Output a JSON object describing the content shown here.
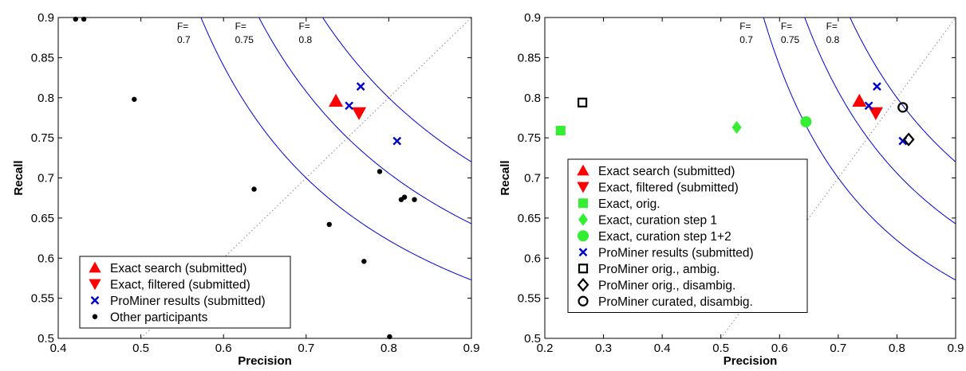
{
  "chart_data": [
    {
      "type": "scatter",
      "xlabel": "Precision",
      "ylabel": "Recall",
      "xlim": [
        0.4,
        0.9
      ],
      "ylim": [
        0.5,
        0.9
      ],
      "xticks": [
        "0.4",
        "0.5",
        "0.6",
        "0.7",
        "0.8",
        "0.9"
      ],
      "yticks": [
        "0.5",
        "0.55",
        "0.6",
        "0.65",
        "0.7",
        "0.75",
        "0.8",
        "0.85",
        "0.9"
      ],
      "grid": false,
      "diagonal": true,
      "legend_position": "bottom-left",
      "f_curves": [
        {
          "f": 0.7,
          "label_top": "F=",
          "label_bottom": "0.7"
        },
        {
          "f": 0.75,
          "label_top": "F=",
          "label_bottom": "0.75"
        },
        {
          "f": 0.8,
          "label_top": "F=",
          "label_bottom": "0.8"
        }
      ],
      "series": [
        {
          "name": "Exact search (submitted)",
          "marker": "triangle-up",
          "color": "#ff0000",
          "points": [
            [
              0.736,
              0.796
            ]
          ]
        },
        {
          "name": "Exact, filtered (submitted)",
          "marker": "triangle-down",
          "color": "#ff0000",
          "points": [
            [
              0.764,
              0.781
            ]
          ]
        },
        {
          "name": "ProMiner results (submitted)",
          "marker": "x",
          "color": "#0000cc",
          "points": [
            [
              0.752,
              0.79
            ],
            [
              0.766,
              0.814
            ],
            [
              0.81,
              0.746
            ]
          ]
        },
        {
          "name": "Other participants",
          "marker": "dot",
          "color": "#000000",
          "points": [
            [
              0.421,
              0.898
            ],
            [
              0.431,
              0.898
            ],
            [
              0.492,
              0.798
            ],
            [
              0.637,
              0.686
            ],
            [
              0.728,
              0.642
            ],
            [
              0.77,
              0.596
            ],
            [
              0.789,
              0.708
            ],
            [
              0.815,
              0.673
            ],
            [
              0.819,
              0.676
            ],
            [
              0.831,
              0.673
            ],
            [
              0.801,
              0.502
            ]
          ]
        }
      ]
    },
    {
      "type": "scatter",
      "xlabel": "Precision",
      "ylabel": "Recall",
      "xlim": [
        0.2,
        0.9
      ],
      "ylim": [
        0.5,
        0.9
      ],
      "xticks": [
        "0.2",
        "0.3",
        "0.4",
        "0.5",
        "0.6",
        "0.7",
        "0.8",
        "0.9"
      ],
      "yticks": [
        "0.5",
        "0.55",
        "0.6",
        "0.65",
        "0.7",
        "0.75",
        "0.8",
        "0.85",
        "0.9"
      ],
      "grid": false,
      "diagonal": true,
      "legend_position": "bottom-left",
      "f_curves": [
        {
          "f": 0.7,
          "label_top": "F=",
          "label_bottom": "0.7"
        },
        {
          "f": 0.75,
          "label_top": "F=",
          "label_bottom": "0.75"
        },
        {
          "f": 0.8,
          "label_top": "F=",
          "label_bottom": "0.8"
        }
      ],
      "series": [
        {
          "name": "Exact search (submitted)",
          "marker": "triangle-up",
          "color": "#ff0000",
          "points": [
            [
              0.736,
              0.796
            ]
          ]
        },
        {
          "name": "Exact, filtered (submitted)",
          "marker": "triangle-down",
          "color": "#ff0000",
          "points": [
            [
              0.764,
              0.781
            ]
          ]
        },
        {
          "name": "Exact, orig.",
          "marker": "square",
          "color": "#33ee33",
          "points": [
            [
              0.227,
              0.759
            ]
          ]
        },
        {
          "name": "Exact, curation step 1",
          "marker": "diamond",
          "color": "#33ee33",
          "points": [
            [
              0.527,
              0.763
            ]
          ]
        },
        {
          "name": "Exact, curation step 1+2",
          "marker": "circle",
          "color": "#33ee33",
          "points": [
            [
              0.645,
              0.77
            ]
          ]
        },
        {
          "name": "ProMiner results (submitted)",
          "marker": "x",
          "color": "#0000cc",
          "points": [
            [
              0.752,
              0.79
            ],
            [
              0.766,
              0.814
            ],
            [
              0.81,
              0.746
            ]
          ]
        },
        {
          "name": "ProMiner orig., ambig.",
          "marker": "square-open",
          "color": "#000000",
          "points": [
            [
              0.264,
              0.794
            ]
          ]
        },
        {
          "name": "ProMiner orig., disambig.",
          "marker": "diamond-open",
          "color": "#000000",
          "points": [
            [
              0.82,
              0.748
            ]
          ]
        },
        {
          "name": "ProMiner curated, disambig.",
          "marker": "circle-open",
          "color": "#000000",
          "points": [
            [
              0.81,
              0.788
            ]
          ]
        }
      ]
    }
  ]
}
